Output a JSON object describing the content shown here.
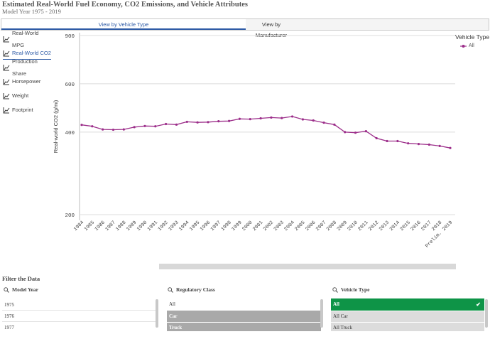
{
  "header": {
    "title": "Estimated Real-World Fuel Economy, CO2 Emissions, and Vehicle Attributes",
    "subtitle": "Model Year 1975 - 2019"
  },
  "tabs": [
    {
      "label": "View by Vehicle Type",
      "active": true
    },
    {
      "label": "View by Manufacturer",
      "active": false
    }
  ],
  "sidebar": {
    "items": [
      {
        "label": "Real-World MPG",
        "icon": "line-chart-icon"
      },
      {
        "label": "Real-World CO2",
        "icon": "line-chart-icon",
        "active": true
      },
      {
        "label": "Production Share",
        "icon": "line-chart-icon"
      },
      {
        "label": "Horsepower",
        "icon": "line-chart-icon"
      },
      {
        "label": "Weight",
        "icon": "line-chart-icon"
      },
      {
        "label": "Footprint",
        "icon": "line-chart-icon"
      }
    ]
  },
  "legend": {
    "title": "Vehicle Type",
    "items": [
      {
        "label": "All",
        "color": "#9c2e8a"
      }
    ]
  },
  "colors": {
    "accent": "#2d5aa6",
    "series": "#9c2e8a",
    "selected_green": "#0e9447"
  },
  "chart_data": {
    "type": "line",
    "ylabel": "Real-world CO2 (g/mi)",
    "xlabel": "",
    "ylim": [
      200,
      900
    ],
    "yticks": [
      "900",
      "600",
      "400",
      "200"
    ],
    "y_scale": "log",
    "grid": true,
    "legend_position": "top-right",
    "categories": [
      "1984",
      "1985",
      "1986",
      "1987",
      "1988",
      "1989",
      "1990",
      "1991",
      "1992",
      "1993",
      "1994",
      "1995",
      "1996",
      "1997",
      "1998",
      "1999",
      "2000",
      "2001",
      "2002",
      "2003",
      "2004",
      "2005",
      "2006",
      "2007",
      "2008",
      "2009",
      "2010",
      "2011",
      "2012",
      "2013",
      "2014",
      "2015",
      "2016",
      "2017",
      "2018",
      "Prelim. 2019"
    ],
    "series": [
      {
        "name": "All",
        "values": [
          425,
          420,
          409,
          408,
          409,
          417,
          421,
          420,
          428,
          426,
          436,
          434,
          435,
          438,
          439,
          447,
          446,
          449,
          452,
          450,
          456,
          445,
          441,
          433,
          426,
          400,
          398,
          403,
          380,
          371,
          371,
          364,
          362,
          360,
          356,
          350
        ]
      }
    ]
  },
  "filters": {
    "heading": "Filter the Data",
    "model_year": {
      "label": "Model Year",
      "options": [
        "1975",
        "1976",
        "1977"
      ]
    },
    "regulatory_class": {
      "label": "Regulatory Class",
      "options": [
        "All",
        "Car",
        "Truck"
      ]
    },
    "vehicle_type": {
      "label": "Vehicle Type",
      "options": [
        "All",
        "All Car",
        "All Truck"
      ],
      "selected": "All"
    }
  }
}
